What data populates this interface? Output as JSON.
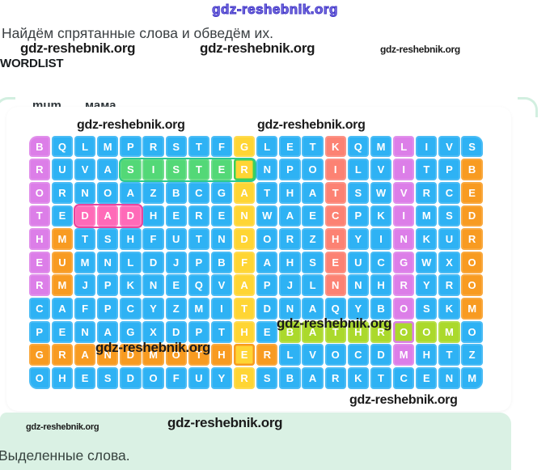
{
  "watermark_text": "gdz-reshebnik.org",
  "header": {
    "title": "Найдём спрятанные слова и обведём их.",
    "wordlist_label": "WORDLIST"
  },
  "wordlist": {
    "partial_word": "mum",
    "partial_translation": "мама"
  },
  "puzzle": {
    "rows": [
      "BQLMPRSTFGLETKQMLIVS",
      "RUVASISTERNPOILVITPB",
      "ORNOAZBCGATHATSWVRCE",
      "TEDADHERENWAECPKIMSD",
      "HMTSHFUTNDORZHYINKUR",
      "EUMNLDJPBFAHSEUCGWXO",
      "RMJPKNEQVAPJLNNHRYRO",
      "CAFPCYZMITDNAQYBOSKM",
      "PENAGXDPTHEBATHROOMO",
      "GRANDMOTHERLVOCDMHTZ",
      "OHESDOFUYRSBARKTCENM"
    ],
    "highlights": [
      {
        "word": "BROTHER",
        "direction": "vertical",
        "row": 1,
        "col": 1,
        "color": "violet"
      },
      {
        "word": "MUM",
        "direction": "vertical",
        "row": 5,
        "col": 2,
        "color": "orange"
      },
      {
        "word": "DAD",
        "direction": "horizontal",
        "row": 4,
        "col": 3,
        "color": "pink",
        "outline": "#e8459e"
      },
      {
        "word": "SISTER",
        "direction": "horizontal",
        "row": 2,
        "col": 5,
        "color": "green",
        "outline": "#2cc98f"
      },
      {
        "word": "GRANDFATHER",
        "direction": "vertical",
        "row": 1,
        "col": 10,
        "color": "yellow"
      },
      {
        "word": "KITCHEN",
        "direction": "vertical",
        "row": 1,
        "col": 14,
        "color": "salmon"
      },
      {
        "word": "LIVINGROOM",
        "direction": "vertical",
        "row": 1,
        "col": 17,
        "color": "violet"
      },
      {
        "word": "BEDROOM",
        "direction": "vertical",
        "row": 2,
        "col": 20,
        "color": "orange"
      },
      {
        "word": "BATHROOM",
        "direction": "horizontal",
        "row": 9,
        "col": 12,
        "color": "lime"
      },
      {
        "word": "GRANDMOTHER",
        "direction": "horizontal",
        "row": 10,
        "col": 1,
        "color": "orange"
      }
    ],
    "shared_cells": [
      {
        "row": 2,
        "col": 10,
        "bg": "yellow",
        "border": "#3cd157"
      },
      {
        "row": 9,
        "col": 17,
        "bg": "lime",
        "border": "#dc7ee8"
      },
      {
        "row": 10,
        "col": 10,
        "bg": "yellow",
        "border": "#f89b21"
      }
    ]
  },
  "colors": {
    "cell_default": "#2eb2f4",
    "violet": "#dc7ee8",
    "orange": "#f89b21",
    "yellow": "#ffd534",
    "salmon": "#fc8273",
    "pink": "#ff6ab8",
    "green": "#53d877",
    "lime": "#abd92c",
    "band": "#daf1e4",
    "watermark_blue": "#4338c8"
  },
  "footer": {
    "highlighted_words_label": "Выделенные слова."
  }
}
